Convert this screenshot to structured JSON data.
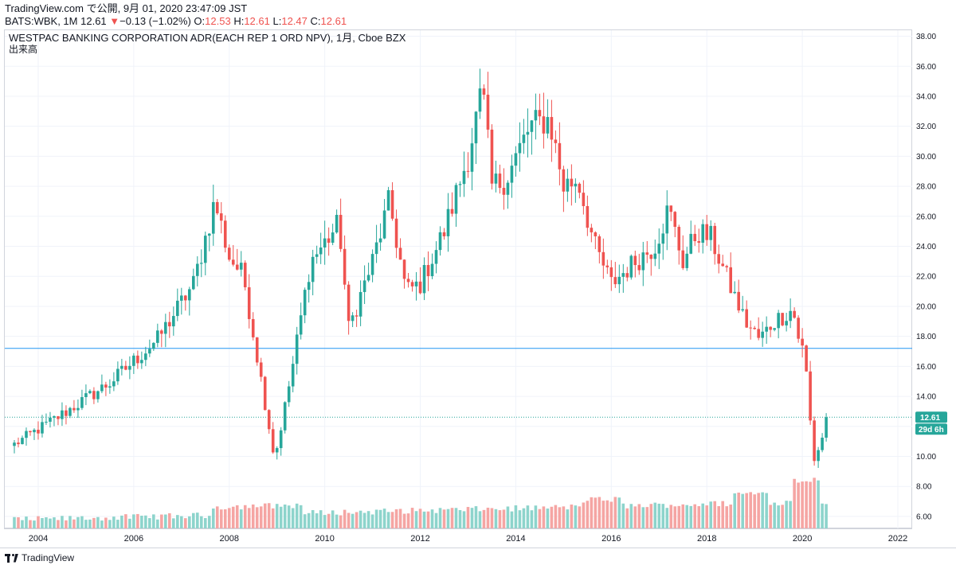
{
  "header": {
    "line1": "TradingView.com で公開, 9月 01, 2020 23:47:09 JST",
    "symbol": "BATS:WBK, 1M",
    "last": "12.61",
    "change": "−0.13 (−1.02%)",
    "o_label": "O:",
    "o_value": "12.53",
    "h_label": "H:",
    "h_value": "12.61",
    "l_label": "L:",
    "l_value": "12.47",
    "c_label": "C:",
    "c_value": "12.61"
  },
  "chart_title": "WESTPAC BANKING CORPORATION ADR(EACH REP 1 ORD NPV), 1月, Cboe BZX",
  "volume_label": "出来高",
  "price_tag": "12.61",
  "countdown_tag": "29d 6h",
  "brand": "TradingView",
  "colors": {
    "up": "#26a69a",
    "down": "#ef5350",
    "up_vol": "#8dd4cc",
    "down_vol": "#f5a5a3",
    "hline": "#2196f3"
  },
  "chart_data": {
    "type": "candlestick",
    "interval": "1M",
    "ylim": [
      5.2,
      38.4
    ],
    "yticks": [
      "38.00",
      "36.00",
      "34.00",
      "32.00",
      "30.00",
      "28.00",
      "26.00",
      "24.00",
      "22.00",
      "20.00",
      "18.00",
      "16.00",
      "14.00",
      "12.00",
      "10.00",
      "8.00",
      "6.00"
    ],
    "xlim": [
      2003.3,
      2022.3
    ],
    "xticks": [
      "2004",
      "2006",
      "2008",
      "2010",
      "2012",
      "2014",
      "2016",
      "2018",
      "2020",
      "2022"
    ],
    "horizontal_line": 17.2,
    "last_price": 12.61,
    "anchors": [
      [
        2003.5,
        10.8
      ],
      [
        2004.5,
        12.8
      ],
      [
        2005.5,
        14.9
      ],
      [
        2006.5,
        17.8
      ],
      [
        2007.25,
        21.5
      ],
      [
        2007.7,
        27.0
      ],
      [
        2008.0,
        23.3
      ],
      [
        2008.3,
        22.0
      ],
      [
        2008.7,
        14.5
      ],
      [
        2008.95,
        9.8
      ],
      [
        2009.3,
        15.5
      ],
      [
        2009.7,
        23.0
      ],
      [
        2010.3,
        25.5
      ],
      [
        2010.5,
        18.5
      ],
      [
        2011.0,
        23.0
      ],
      [
        2011.35,
        27.0
      ],
      [
        2011.7,
        21.0
      ],
      [
        2012.0,
        21.5
      ],
      [
        2012.5,
        25.0
      ],
      [
        2013.0,
        30.0
      ],
      [
        2013.3,
        34.5
      ],
      [
        2013.5,
        28.0
      ],
      [
        2013.8,
        28.5
      ],
      [
        2014.3,
        32.0
      ],
      [
        2014.7,
        32.5
      ],
      [
        2015.0,
        28.0
      ],
      [
        2015.3,
        28.5
      ],
      [
        2015.65,
        24.0
      ],
      [
        2016.0,
        21.5
      ],
      [
        2016.5,
        23.0
      ],
      [
        2016.9,
        24.0
      ],
      [
        2017.2,
        26.5
      ],
      [
        2017.5,
        23.0
      ],
      [
        2017.8,
        25.0
      ],
      [
        2018.1,
        24.5
      ],
      [
        2018.4,
        22.0
      ],
      [
        2018.8,
        19.0
      ],
      [
        2019.1,
        17.8
      ],
      [
        2019.4,
        19.0
      ],
      [
        2019.8,
        19.8
      ],
      [
        2019.95,
        17.5
      ],
      [
        2020.05,
        16.8
      ],
      [
        2020.17,
        12.2
      ],
      [
        2020.25,
        9.8
      ],
      [
        2020.4,
        11.0
      ],
      [
        2020.5,
        12.8
      ],
      [
        2020.58,
        12.61
      ]
    ],
    "volume_max": 10.8
  }
}
